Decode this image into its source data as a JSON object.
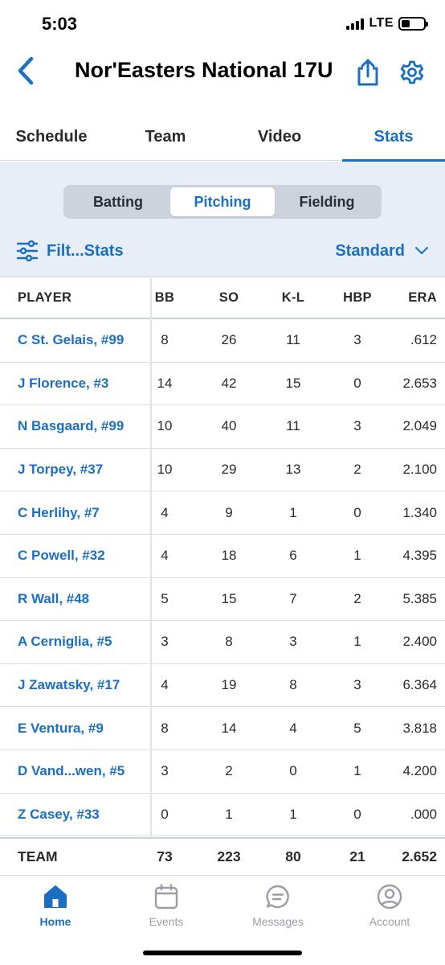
{
  "status_bar": {
    "time": "5:03",
    "network": "LTE"
  },
  "header": {
    "title": "Nor'Easters National 17U"
  },
  "tabs": [
    {
      "label": "Schedule",
      "active": false
    },
    {
      "label": "Team",
      "active": false
    },
    {
      "label": "Video",
      "active": false
    },
    {
      "label": "Stats",
      "active": true
    }
  ],
  "stats_panel": {
    "segments": [
      {
        "label": "Batting",
        "active": false
      },
      {
        "label": "Pitching",
        "active": true
      },
      {
        "label": "Fielding",
        "active": false
      }
    ],
    "filter_label": "Filt...Stats",
    "view_selected": "Standard"
  },
  "table": {
    "columns": [
      "PLAYER",
      "BB",
      "SO",
      "K-L",
      "HBP",
      "ERA"
    ],
    "rows": [
      {
        "player": "C St. Gelais, #99",
        "bb": "8",
        "so": "26",
        "kl": "11",
        "hbp": "3",
        "era": ".612"
      },
      {
        "player": "J Florence, #3",
        "bb": "14",
        "so": "42",
        "kl": "15",
        "hbp": "0",
        "era": "2.653"
      },
      {
        "player": "N Basgaard, #99",
        "bb": "10",
        "so": "40",
        "kl": "11",
        "hbp": "3",
        "era": "2.049"
      },
      {
        "player": "J Torpey, #37",
        "bb": "10",
        "so": "29",
        "kl": "13",
        "hbp": "2",
        "era": "2.100"
      },
      {
        "player": "C Herlihy, #7",
        "bb": "4",
        "so": "9",
        "kl": "1",
        "hbp": "0",
        "era": "1.340"
      },
      {
        "player": "C Powell, #32",
        "bb": "4",
        "so": "18",
        "kl": "6",
        "hbp": "1",
        "era": "4.395"
      },
      {
        "player": "R Wall, #48",
        "bb": "5",
        "so": "15",
        "kl": "7",
        "hbp": "2",
        "era": "5.385"
      },
      {
        "player": "A Cerniglia, #5",
        "bb": "3",
        "so": "8",
        "kl": "3",
        "hbp": "1",
        "era": "2.400"
      },
      {
        "player": "J Zawatsky, #17",
        "bb": "4",
        "so": "19",
        "kl": "8",
        "hbp": "3",
        "era": "6.364"
      },
      {
        "player": "E Ventura, #9",
        "bb": "8",
        "so": "14",
        "kl": "4",
        "hbp": "5",
        "era": "3.818"
      },
      {
        "player": "D Vand...wen, #5",
        "bb": "3",
        "so": "2",
        "kl": "0",
        "hbp": "1",
        "era": "4.200"
      },
      {
        "player": "Z Casey, #33",
        "bb": "0",
        "so": "1",
        "kl": "1",
        "hbp": "0",
        "era": ".000"
      }
    ],
    "team_row": {
      "player": "TEAM",
      "bb": "73",
      "so": "223",
      "kl": "80",
      "hbp": "21",
      "era": "2.652"
    }
  },
  "bottom_nav": [
    {
      "label": "Home",
      "icon": "home-icon",
      "active": true
    },
    {
      "label": "Events",
      "icon": "calendar-icon",
      "active": false
    },
    {
      "label": "Messages",
      "icon": "chat-bubble-icon",
      "active": false
    },
    {
      "label": "Account",
      "icon": "person-circle-icon",
      "active": false
    }
  ],
  "colors": {
    "accent": "#1a6fc2",
    "panel_bg": "#e8eef8",
    "inactive_nav": "#9a9ea4"
  }
}
